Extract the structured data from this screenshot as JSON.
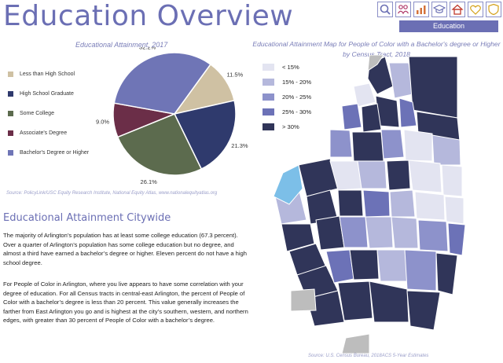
{
  "header": {
    "title": "Education Overview",
    "active_tab": "Education",
    "icons": [
      "search-icon",
      "people-icon",
      "chart-icon",
      "education-icon",
      "home-icon",
      "health-icon",
      "shield-icon"
    ]
  },
  "pie": {
    "title": "Educational Attainment, 2017",
    "source": "Source: PolicyLink/USC Equity Research Institute, National Equity Atlas, www.nationalequityatlas.org",
    "legend": [
      {
        "label": "Less than High School",
        "color": "#cfc1a3"
      },
      {
        "label": "High School Graduate",
        "color": "#2f3a6d"
      },
      {
        "label": "Some College",
        "color": "#5c6b4e"
      },
      {
        "label": "Associate's Degree",
        "color": "#6b2e48"
      },
      {
        "label": "Bachelor's Degree or Higher",
        "color": "#6f75b6"
      }
    ]
  },
  "chart_data": {
    "type": "pie",
    "title": "Educational Attainment, 2017",
    "categories": [
      "Less than High School",
      "High School Graduate",
      "Some College",
      "Associate's Degree",
      "Bachelor's Degree or Higher"
    ],
    "values": [
      11.5,
      21.3,
      26.1,
      9.0,
      32.2
    ],
    "value_labels": [
      "11.5%",
      "21.3%",
      "26.1%",
      "9.0%",
      "32.2%"
    ]
  },
  "section": {
    "heading": "Educational Attainment Citywide",
    "paragraph1": "The majority of Arlington’s population has at least some college education (67.3 percent). Over a quarter of Arlington’s population has some college education but no degree, and almost a third have earned a bachelor’s degree or higher. Eleven percent do not have a high school degree.",
    "paragraph2": "For People of Color in Arlington, where you live appears to have some correlation with your degree of education. For all Census tracts in central-east Arlington, the percent of People of Color with a bachelor’s degree is less than 20 percent. This value generally increases the farther from East Arlington you go and is highest at the city’s southern, western, and northern edges, with greater than 30 percent of People of Color with a bachelor’s degree."
  },
  "map": {
    "title": "Educational Attainment Map for People of Color with a Bachelor's degree or Higher by Census Tract, 2018",
    "legend": [
      {
        "label": "< 15%",
        "color": "#e3e4f1"
      },
      {
        "label": "15% - 20%",
        "color": "#b5b8dc"
      },
      {
        "label": "20% - 25%",
        "color": "#8d92cb"
      },
      {
        "label": "25% - 30%",
        "color": "#6c72b7"
      },
      {
        "label": "> 30%",
        "color": "#303559"
      }
    ],
    "source": "Source: U.S. Census Bureau, 2018ACS 5-Year Estimates"
  }
}
